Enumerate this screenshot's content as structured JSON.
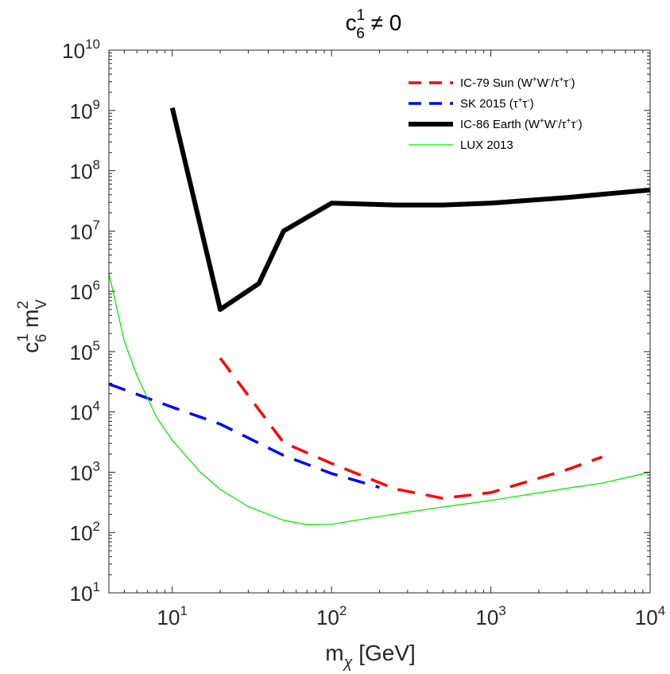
{
  "chart_data": {
    "type": "line",
    "title": {
      "base": "c",
      "sup": "1",
      "sub": "6",
      "rest": " ≠ 0"
    },
    "xlabel": {
      "base": "m",
      "sub": "χ",
      "rest": " [GeV]"
    },
    "ylabel": {
      "c": "c",
      "c_sup": "1",
      "c_sub": "6",
      "m": " m",
      "m_sup": "2",
      "m_sub": "V"
    },
    "xscale": "log",
    "yscale": "log",
    "xlim": [
      4,
      10000
    ],
    "ylim": [
      10,
      10000000000
    ],
    "xticks": [
      {
        "base": "10",
        "exp": "1",
        "value": 10
      },
      {
        "base": "10",
        "exp": "2",
        "value": 100
      },
      {
        "base": "10",
        "exp": "3",
        "value": 1000
      },
      {
        "base": "10",
        "exp": "4",
        "value": 10000
      }
    ],
    "yticks": [
      {
        "base": "10",
        "exp": "1",
        "value": 10
      },
      {
        "base": "10",
        "exp": "2",
        "value": 100
      },
      {
        "base": "10",
        "exp": "3",
        "value": 1000
      },
      {
        "base": "10",
        "exp": "4",
        "value": 10000
      },
      {
        "base": "10",
        "exp": "5",
        "value": 100000
      },
      {
        "base": "10",
        "exp": "6",
        "value": 1000000
      },
      {
        "base": "10",
        "exp": "7",
        "value": 10000000
      },
      {
        "base": "10",
        "exp": "8",
        "value": 100000000
      },
      {
        "base": "10",
        "exp": "9",
        "value": 1000000000
      },
      {
        "base": "10",
        "exp": "10",
        "value": 10000000000
      }
    ],
    "legend_position": "top-right",
    "series": [
      {
        "name": "IC-79 Sun",
        "legend_parts": [
          "IC-79 Sun (W",
          "+",
          "W",
          "-",
          "/τ",
          "+",
          "τ",
          "-",
          ")"
        ],
        "color": "#ff0000",
        "style": "dashed",
        "x": [
          20,
          50,
          100,
          250,
          500,
          1000,
          3000,
          5000
        ],
        "y": [
          78000,
          3100,
          1400,
          530,
          370,
          460,
          1100,
          1800
        ]
      },
      {
        "name": "SK 2015",
        "legend_parts": [
          "SK 2015 (τ",
          "+",
          "τ",
          "-",
          ")"
        ],
        "color": "#0000ff",
        "style": "dashed",
        "x": [
          4,
          10,
          20,
          50,
          100,
          200
        ],
        "y": [
          29000,
          12000,
          6300,
          1900,
          950,
          560
        ]
      },
      {
        "name": "IC-86 Earth",
        "legend_parts": [
          "IC-86 Earth (W",
          "+",
          "W",
          "-",
          "/τ",
          "+",
          "τ",
          "-",
          ")"
        ],
        "color": "#000000",
        "style": "thick",
        "x": [
          10,
          20,
          35,
          50,
          100,
          250,
          500,
          1000,
          3000,
          10000
        ],
        "y": [
          1100000000,
          500000,
          1350000,
          10000000,
          29000000,
          27000000,
          27000000,
          29000000,
          36000000,
          48000000
        ]
      },
      {
        "name": "LUX 2013",
        "legend_parts": [
          "LUX 2013"
        ],
        "color": "#00ee00",
        "style": "thin",
        "x": [
          4,
          5,
          6,
          8,
          10,
          15,
          20,
          30,
          50,
          70,
          100,
          200,
          500,
          1000,
          3000,
          5000,
          10000
        ],
        "y": [
          2000000,
          150000,
          40000,
          8000,
          3400,
          1000,
          520,
          270,
          160,
          135,
          137,
          185,
          265,
          340,
          540,
          660,
          1000
        ]
      }
    ]
  }
}
